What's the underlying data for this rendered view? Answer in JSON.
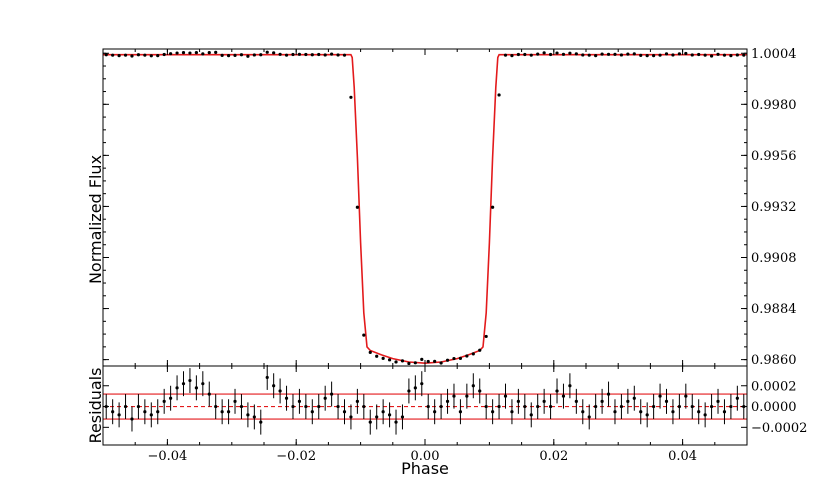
{
  "chart_data": [
    {
      "type": "scatter",
      "panel": "top",
      "xlabel": "",
      "ylabel": "Normalized Flux",
      "xlim": [
        -0.05,
        0.05
      ],
      "ylim": [
        0.9857,
        1.0006
      ],
      "yticks": [
        0.986,
        0.9884,
        0.9908,
        0.9932,
        0.9956,
        0.998,
        1.0004
      ],
      "ytick_labels": [
        "0.9860",
        "0.9884",
        "0.9908",
        "0.9932",
        "0.9956",
        "0.9980",
        "1.0004"
      ],
      "ytick_side": "right",
      "xticks": [
        -0.04,
        -0.02,
        0.0,
        0.02,
        0.04
      ],
      "grid": false,
      "series": [
        {
          "style": "points-with-errorbars",
          "color": "#000000",
          "x": [
            -0.0495,
            -0.0485,
            -0.0475,
            -0.0465,
            -0.0455,
            -0.0445,
            -0.0435,
            -0.0425,
            -0.0415,
            -0.0405,
            -0.0395,
            -0.0385,
            -0.0375,
            -0.0365,
            -0.0355,
            -0.0345,
            -0.0335,
            -0.0325,
            -0.0315,
            -0.0305,
            -0.0295,
            -0.0285,
            -0.0275,
            -0.0265,
            -0.0255,
            -0.0245,
            -0.0235,
            -0.0225,
            -0.0215,
            -0.0205,
            -0.0195,
            -0.0185,
            -0.0175,
            -0.0165,
            -0.0155,
            -0.0145,
            -0.0135,
            -0.0125,
            -0.0115,
            -0.0105,
            -0.0095,
            -0.0085,
            -0.0075,
            -0.0065,
            -0.0055,
            -0.0045,
            -0.0035,
            -0.0025,
            -0.0015,
            -0.0005,
            0.0005,
            0.0015,
            0.0025,
            0.0035,
            0.0045,
            0.0055,
            0.0065,
            0.0075,
            0.0085,
            0.0095,
            0.0105,
            0.0115,
            0.0125,
            0.0135,
            0.0145,
            0.0155,
            0.0165,
            0.0175,
            0.0185,
            0.0195,
            0.0205,
            0.0215,
            0.0225,
            0.0235,
            0.0245,
            0.0255,
            0.0265,
            0.0275,
            0.0285,
            0.0295,
            0.0305,
            0.0315,
            0.0325,
            0.0335,
            0.0345,
            0.0355,
            0.0365,
            0.0375,
            0.0385,
            0.0395,
            0.0405,
            0.0415,
            0.0425,
            0.0435,
            0.0445,
            0.0455,
            0.0465,
            0.0475,
            0.0485,
            0.0495
          ],
          "y": [
            1.00033,
            1.00031,
            1.00029,
            1.00031,
            1.00027,
            1.00033,
            1.00031,
            1.00028,
            1.00029,
            1.00034,
            1.00038,
            1.00041,
            1.00043,
            1.00041,
            1.00043,
            1.00037,
            1.00043,
            1.00044,
            1.0003,
            1.00029,
            1.0003,
            1.00033,
            1.00026,
            1.00032,
            1.00033,
            1.00045,
            1.00042,
            1.00035,
            1.00031,
            1.00034,
            1.00035,
            1.00034,
            1.00033,
            1.00034,
            1.00032,
            1.00036,
            1.00032,
            1.00031,
            0.99833,
            0.99316,
            0.98715,
            0.98634,
            0.98616,
            0.98606,
            0.98599,
            0.98589,
            0.98594,
            0.98582,
            0.98585,
            0.98601,
            0.98591,
            0.98592,
            0.98584,
            0.98597,
            0.98605,
            0.98606,
            0.98617,
            0.98627,
            0.98644,
            0.98709,
            0.99316,
            0.99844,
            1.00031,
            1.00029,
            1.00034,
            1.00034,
            1.00031,
            1.00036,
            1.00042,
            1.00034,
            1.00041,
            1.00035,
            1.0004,
            1.00037,
            1.00032,
            1.00031,
            1.00029,
            1.00036,
            1.00035,
            1.00035,
            1.00032,
            1.00036,
            1.00037,
            1.0003,
            1.00029,
            1.00029,
            1.00031,
            1.00037,
            1.00032,
            1.00037,
            1.00039,
            1.00032,
            1.00034,
            1.00031,
            1.00027,
            1.00035,
            1.00031,
            1.00029,
            1.00032,
            1.00031
          ],
          "yerr": 0.00012
        },
        {
          "style": "line",
          "color": "#e31a1c",
          "x": [
            -0.05,
            -0.0115,
            -0.0113,
            -0.011,
            -0.0105,
            -0.01,
            -0.0095,
            -0.009,
            -0.0085,
            -0.007,
            -0.005,
            -0.0025,
            0.0,
            0.0025,
            0.005,
            0.007,
            0.0085,
            0.009,
            0.0095,
            0.01,
            0.0105,
            0.011,
            0.0113,
            0.0115,
            0.05
          ],
          "y": [
            1.00033,
            1.00033,
            1.0002,
            0.9988,
            0.9955,
            0.9915,
            0.9882,
            0.9866,
            0.98643,
            0.98625,
            0.98605,
            0.98589,
            0.98583,
            0.98589,
            0.98605,
            0.98625,
            0.98643,
            0.9866,
            0.9882,
            0.9915,
            0.9955,
            0.9988,
            1.0002,
            1.00033,
            1.00033
          ]
        }
      ]
    },
    {
      "type": "scatter",
      "panel": "bottom",
      "xlabel": "Phase",
      "ylabel": "Residuals",
      "xlim": [
        -0.05,
        0.05
      ],
      "ylim": [
        -0.00037,
        0.00039
      ],
      "yticks": [
        -0.0002,
        0.0,
        0.0002
      ],
      "ytick_labels": [
        "−0.0002",
        "0.0000",
        "0.0002"
      ],
      "ytick_side": "right",
      "xticks": [
        -0.04,
        -0.02,
        0.0,
        0.02,
        0.04
      ],
      "xtick_labels": [
        "−0.04",
        "−0.02",
        "0.00",
        "0.02",
        "0.04"
      ],
      "grid": false,
      "reference_lines": [
        {
          "y": 0.0,
          "style": "dashed",
          "color": "#e31a1c"
        },
        {
          "y": 0.00012,
          "style": "solid",
          "color": "#e31a1c"
        },
        {
          "y": -0.00012,
          "style": "solid",
          "color": "#e31a1c"
        }
      ],
      "series": [
        {
          "style": "points-with-errorbars",
          "color": "#000000",
          "x": [
            -0.0495,
            -0.0485,
            -0.0475,
            -0.0465,
            -0.0455,
            -0.0445,
            -0.0435,
            -0.0425,
            -0.0415,
            -0.0405,
            -0.0395,
            -0.0385,
            -0.0375,
            -0.0365,
            -0.0355,
            -0.0345,
            -0.0335,
            -0.0325,
            -0.0315,
            -0.0305,
            -0.0295,
            -0.0285,
            -0.0275,
            -0.0265,
            -0.0255,
            -0.0245,
            -0.0235,
            -0.0225,
            -0.0215,
            -0.0205,
            -0.0195,
            -0.0185,
            -0.0175,
            -0.0165,
            -0.0155,
            -0.0145,
            -0.0135,
            -0.0125,
            -0.0115,
            -0.0105,
            -0.0095,
            -0.0085,
            -0.0075,
            -0.0065,
            -0.0055,
            -0.0045,
            -0.0035,
            -0.0025,
            -0.0015,
            -0.0005,
            0.0005,
            0.0015,
            0.0025,
            0.0035,
            0.0045,
            0.0055,
            0.0065,
            0.0075,
            0.0085,
            0.0095,
            0.0105,
            0.0115,
            0.0125,
            0.0135,
            0.0145,
            0.0155,
            0.0165,
            0.0175,
            0.0185,
            0.0195,
            0.0205,
            0.0215,
            0.0225,
            0.0235,
            0.0245,
            0.0255,
            0.0265,
            0.0275,
            0.0285,
            0.0295,
            0.0305,
            0.0315,
            0.0325,
            0.0335,
            0.0345,
            0.0355,
            0.0365,
            0.0375,
            0.0385,
            0.0395,
            0.0405,
            0.0415,
            0.0425,
            0.0435,
            0.0445,
            0.0455,
            0.0465,
            0.0475,
            0.0485,
            0.0495
          ],
          "y": [
            0.0,
            -5e-05,
            -8e-05,
            0.0,
            -0.00012,
            0.0,
            -5e-05,
            -8e-05,
            -5e-05,
            5e-05,
            8e-05,
            0.00018,
            0.00022,
            0.00025,
            0.00018,
            0.00022,
            0.00012,
            0.0,
            -5e-05,
            -5e-05,
            5e-05,
            0.0,
            -8e-05,
            -0.0001,
            -0.00015,
            0.00028,
            0.0002,
            0.00015,
            8e-05,
            0.0,
            5e-05,
            0.0,
            -5e-05,
            0.0,
            8e-05,
            0.00012,
            0.0,
            -5e-05,
            -0.0001,
            5e-05,
            0.0,
            -0.00015,
            -0.0001,
            -5e-05,
            -8e-05,
            -0.00015,
            -0.0001,
            0.00015,
            0.00018,
            0.00022,
            0.0,
            -5e-05,
            0.0,
            5e-05,
            0.0001,
            -5e-05,
            0.0001,
            0.0002,
            0.00015,
            0.0,
            -5e-05,
            0.0,
            0.0001,
            -5e-05,
            5e-05,
            0.0,
            -8e-05,
            0.0,
            5e-05,
            0.0,
            0.00015,
            0.0001,
            0.0002,
            5e-05,
            -5e-05,
            -0.0001,
            0.0,
            5e-05,
            0.00012,
            -5e-05,
            0.0,
            5e-05,
            8e-05,
            -5e-05,
            -8e-05,
            0.0,
            0.0001,
            5e-05,
            -5e-05,
            0.0,
            0.0001,
            0.0,
            -5e-05,
            -8e-05,
            0.0,
            5e-05,
            -5e-05,
            0.0,
            8e-05,
            0.0
          ],
          "yerr": 0.00012
        }
      ]
    }
  ]
}
